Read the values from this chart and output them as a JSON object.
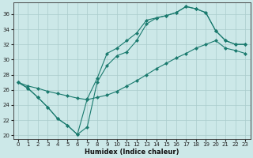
{
  "xlabel": "Humidex (Indice chaleur)",
  "xlim": [
    -0.5,
    23.5
  ],
  "ylim": [
    19.5,
    37.5
  ],
  "xticks": [
    0,
    1,
    2,
    3,
    4,
    5,
    6,
    7,
    8,
    9,
    10,
    11,
    12,
    13,
    14,
    15,
    16,
    17,
    18,
    19,
    20,
    21,
    22,
    23
  ],
  "yticks": [
    20,
    22,
    24,
    26,
    28,
    30,
    32,
    34,
    36
  ],
  "line_color": "#1a7a6e",
  "bg_color": "#cce8e8",
  "grid_color": "#aacccc",
  "line1": {
    "x": [
      0,
      1,
      2,
      3,
      4,
      5,
      6,
      7,
      8,
      9,
      10,
      11,
      12,
      13,
      14,
      15,
      16,
      17,
      18,
      19,
      20,
      21,
      22,
      23
    ],
    "y": [
      27.0,
      26.2,
      25.0,
      23.7,
      22.2,
      21.3,
      20.1,
      21.1,
      27.0,
      29.2,
      30.5,
      31.0,
      32.5,
      34.7,
      35.5,
      35.8,
      36.2,
      37.0,
      36.7,
      36.2,
      33.8,
      32.5,
      32.0,
      32.0
    ]
  },
  "line2": {
    "x": [
      0,
      1,
      2,
      3,
      4,
      5,
      6,
      7,
      8,
      9,
      10,
      11,
      12,
      13,
      14,
      15,
      16,
      17,
      18,
      19,
      20,
      21,
      22,
      23
    ],
    "y": [
      27.0,
      26.2,
      25.0,
      23.7,
      22.2,
      21.3,
      20.1,
      24.8,
      27.5,
      30.8,
      31.5,
      32.5,
      33.5,
      35.2,
      35.5,
      35.8,
      36.2,
      37.0,
      36.7,
      36.2,
      33.8,
      32.5,
      32.0,
      32.0
    ]
  },
  "line3": {
    "x": [
      0,
      1,
      2,
      3,
      4,
      5,
      6,
      7,
      8,
      9,
      10,
      11,
      12,
      13,
      14,
      15,
      16,
      17,
      18,
      19,
      20,
      21,
      22,
      23
    ],
    "y": [
      27.0,
      26.5,
      26.2,
      25.8,
      25.5,
      25.2,
      24.9,
      24.7,
      25.0,
      25.3,
      25.8,
      26.5,
      27.2,
      28.0,
      28.8,
      29.5,
      30.2,
      30.8,
      31.5,
      32.0,
      32.5,
      31.5,
      31.2,
      30.8
    ]
  }
}
